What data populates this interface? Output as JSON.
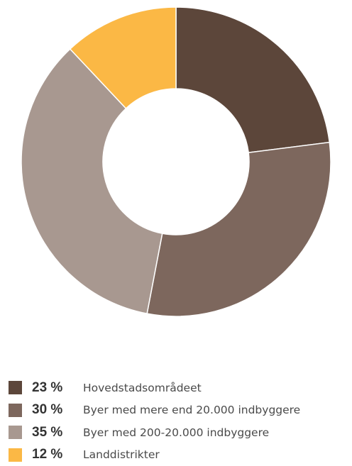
{
  "chart_data": {
    "type": "pie",
    "subtype": "donut",
    "title": "",
    "legend_position": "bottom",
    "categories": [
      "Hovedstadsområdeet",
      "Byer med mere end 20.000 indbyggere",
      "Byer med 200-20.000 indbyggere",
      "Landdistrikter"
    ],
    "values": [
      23,
      30,
      35,
      12
    ],
    "value_labels": [
      "23 %",
      "30 %",
      "35 %",
      "12 %"
    ],
    "colors": [
      "#5c463a",
      "#7d675d",
      "#a89890",
      "#fbb845"
    ]
  }
}
